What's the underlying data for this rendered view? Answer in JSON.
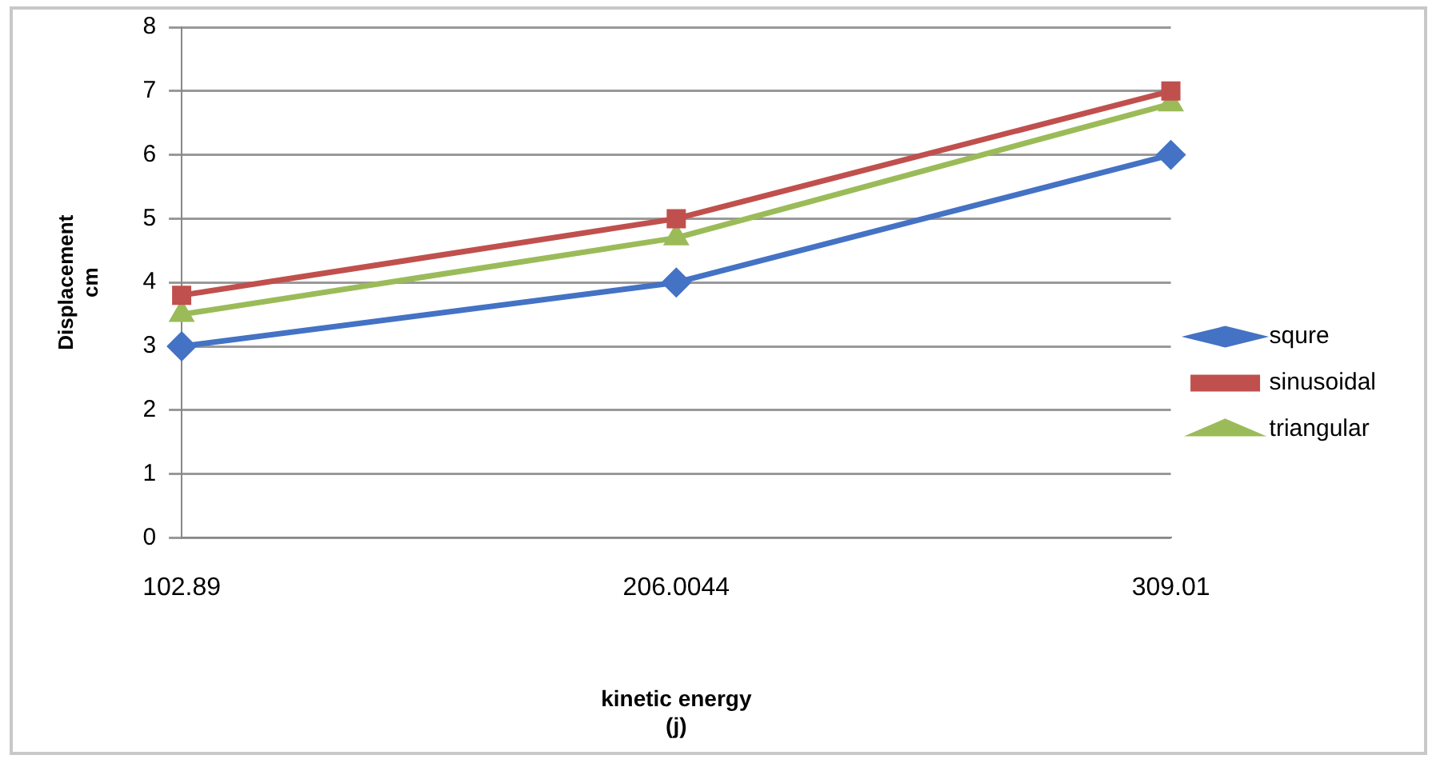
{
  "chart_data": {
    "type": "line",
    "xlabel": "kinetic energy\n(j)",
    "ylabel": "Displacement\ncm",
    "categories": [
      "102.89",
      "206.0044",
      "309.01"
    ],
    "series": [
      {
        "name": "squre",
        "color": "#4472c4",
        "marker": "diamond",
        "values": [
          3,
          4,
          6
        ]
      },
      {
        "name": "sinusoidal",
        "color": "#c0504d",
        "marker": "square",
        "values": [
          3.8,
          5,
          7
        ]
      },
      {
        "name": "triangular",
        "color": "#9bbb59",
        "marker": "triangle",
        "values": [
          3.5,
          4.7,
          6.8
        ]
      }
    ],
    "ylim": [
      0,
      8
    ],
    "yticks": [
      0,
      1,
      2,
      3,
      4,
      5,
      6,
      7,
      8
    ],
    "grid": "y",
    "legend": "right",
    "line_style": "solid"
  }
}
